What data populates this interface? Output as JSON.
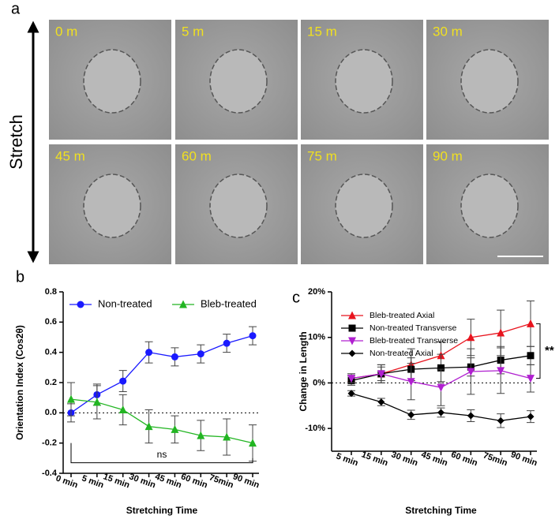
{
  "panel_a": {
    "label": "a",
    "side_label": "Stretch",
    "frames": [
      "0 m",
      "5 m",
      "15 m",
      "30 m",
      "45 m",
      "60 m",
      "75 m",
      "90 m"
    ]
  },
  "chart_data": [
    {
      "type": "line",
      "panel_label": "b",
      "x_label": "Stretching Time",
      "y_label": "Orientation Index (Cos2θ)",
      "categories": [
        "0 min",
        "5 min",
        "15 min",
        "30 min",
        "45 min",
        "60 min",
        "75min",
        "90 min"
      ],
      "ylim": [
        -0.4,
        0.8
      ],
      "yticks": [
        -0.4,
        -0.2,
        {
          "value": 0,
          "label": "0.0"
        },
        0.2,
        0.4,
        0.6,
        0.8
      ],
      "reference_line": 0,
      "annotation": "ns",
      "legend": "top",
      "series": [
        {
          "name": "Non-treated",
          "color": "#1a1aff",
          "marker": "circle",
          "values": [
            0,
            0.12,
            0.21,
            0.4,
            0.37,
            0.39,
            0.46,
            0.51
          ],
          "errors": [
            0.06,
            0.07,
            0.07,
            0.07,
            0.06,
            0.06,
            0.06,
            0.06
          ]
        },
        {
          "name": "Bleb-treated",
          "color": "#22b522",
          "marker": "triangle",
          "values": [
            0.09,
            0.07,
            0.02,
            -0.09,
            -0.11,
            -0.15,
            -0.16,
            -0.2
          ],
          "errors": [
            0.11,
            0.11,
            0.1,
            0.11,
            0.09,
            0.1,
            0.12,
            0.12
          ]
        }
      ]
    },
    {
      "type": "line",
      "panel_label": "c",
      "x_label": "Stretching Time",
      "y_label": "Change in Length",
      "categories": [
        "5 min",
        "15 min",
        "30 min",
        "45 min",
        "60 min",
        "75min",
        "90 min"
      ],
      "ylim": [
        -15,
        20
      ],
      "yticks": [
        {
          "value": -10,
          "label": "-10%"
        },
        {
          "value": 0,
          "label": "0%"
        },
        {
          "value": 10,
          "label": "10%"
        },
        {
          "value": 20,
          "label": "20%"
        }
      ],
      "reference_line": 0,
      "annotation": "**",
      "legend": "upper left",
      "series": [
        {
          "name": "Bleb-treated Axial",
          "color": "#e8141e",
          "marker": "triangle",
          "values": [
            1,
            2,
            4,
            6,
            10,
            11,
            13
          ],
          "errors": [
            1,
            2,
            3.5,
            3,
            4,
            5,
            5
          ]
        },
        {
          "name": "Non-treated Transverse",
          "color": "#000000",
          "marker": "square",
          "values": [
            0.5,
            2,
            3,
            3.3,
            3.5,
            5,
            6
          ],
          "errors": [
            1,
            1.5,
            2.5,
            3,
            2,
            3,
            2
          ]
        },
        {
          "name": "Bleb-treated Transverse",
          "color": "#b020d0",
          "marker": "triangle-down",
          "values": [
            1,
            2,
            0.3,
            -1,
            2.5,
            2.7,
            1
          ],
          "errors": [
            1,
            2,
            4,
            4,
            5,
            5,
            3
          ]
        },
        {
          "name": "Non-treated Axial",
          "color": "#000000",
          "marker": "diamond",
          "values": [
            -2.3,
            -4.2,
            -7,
            -6.5,
            -7.2,
            -8.3,
            -7.4
          ],
          "errors": [
            0.6,
            0.8,
            1,
            1,
            1.3,
            1.5,
            1.3
          ]
        }
      ]
    }
  ]
}
